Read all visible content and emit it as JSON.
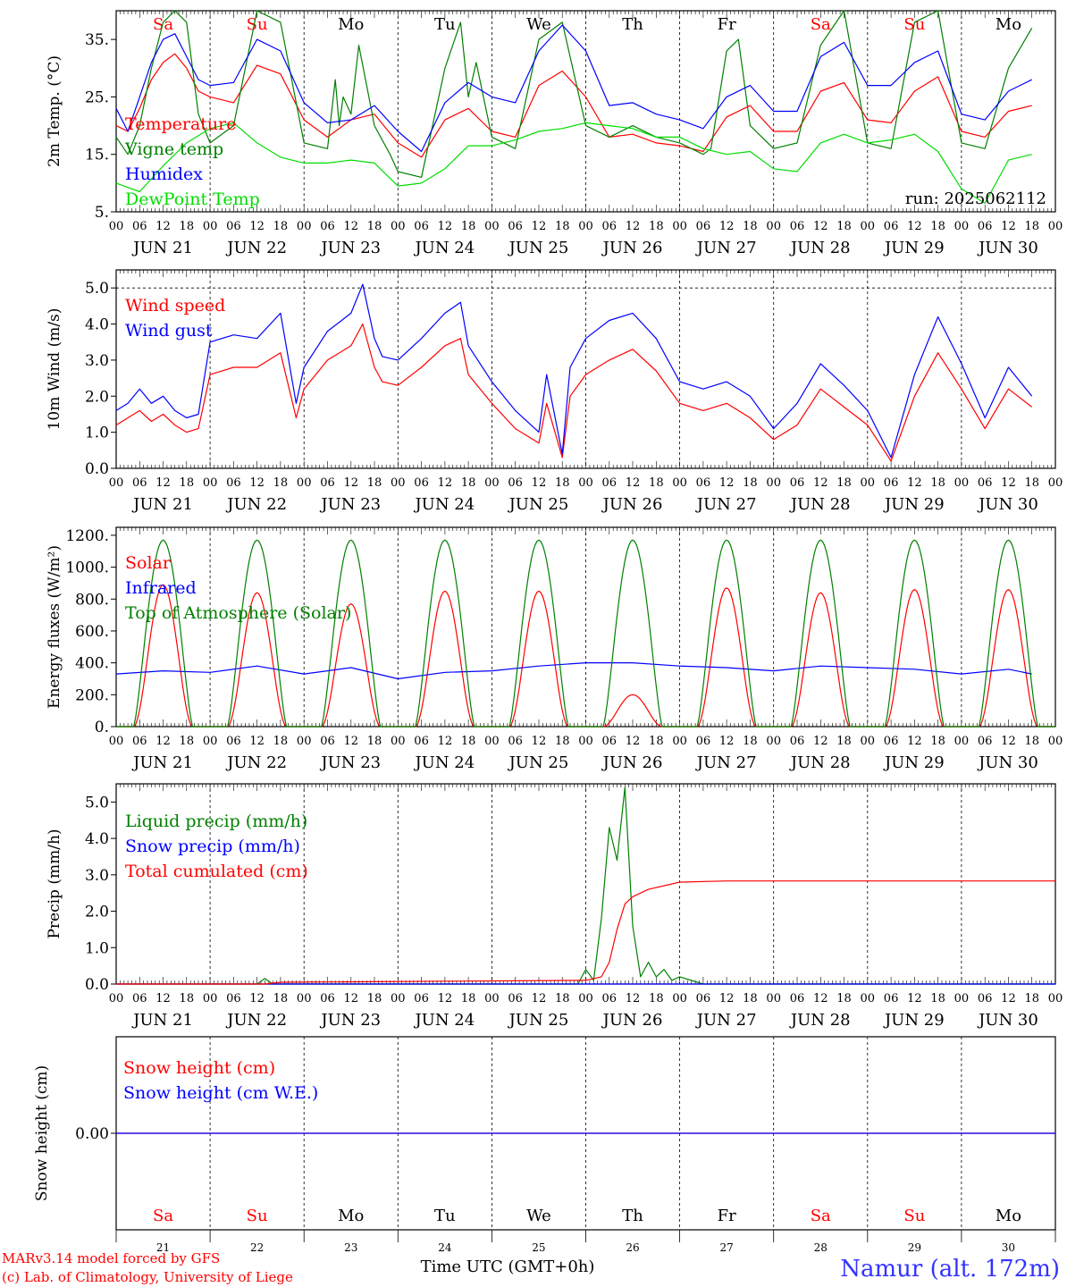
{
  "footer": {
    "model": "MARv3.14 model forced by GFS",
    "lab": "(c) Lab. of Climatology, University of Liege",
    "station": "Namur (alt. 172m)",
    "xlabel": "Time UTC (GMT+0h)"
  },
  "colors": {
    "red": "#ff0000",
    "green": "#008000",
    "blue": "#0000ff",
    "lightgreen": "#00dd00",
    "station": "#3333ff"
  },
  "days": [
    "Sa",
    "Su",
    "Mo",
    "Tu",
    "We",
    "Th",
    "Fr",
    "Sa",
    "Su",
    "Mo"
  ],
  "weekend": [
    true,
    true,
    false,
    false,
    false,
    false,
    false,
    true,
    true,
    false
  ],
  "dates": [
    "JUN 21",
    "JUN 22",
    "JUN 23",
    "JUN 24",
    "JUN 25",
    "JUN 26",
    "JUN 27",
    "JUN 28",
    "JUN 29",
    "JUN 30"
  ],
  "day_numbers": [
    "21",
    "22",
    "23",
    "24",
    "25",
    "26",
    "27",
    "28",
    "29",
    "30"
  ],
  "hour_ticks": [
    "00",
    "06",
    "12",
    "18"
  ],
  "end_tick": "00",
  "chart_data": [
    {
      "type": "line",
      "ylabel": "2m Temp. (°C)",
      "ylim": [
        5,
        40
      ],
      "yticks": [
        "5.",
        "15.",
        "25.",
        "35."
      ],
      "grid_lines": [],
      "x_unit": "hours since 21 Jun 00 UTC",
      "annotation": "run: 2025062112",
      "series": [
        {
          "name": "Temperature",
          "color": "#ff0000",
          "x": [
            0,
            3,
            6,
            9,
            12,
            15,
            18,
            21,
            24,
            30,
            36,
            42,
            48,
            54,
            60,
            66,
            72,
            78,
            84,
            90,
            96,
            102,
            108,
            114,
            120,
            126,
            132,
            138,
            144,
            150,
            156,
            162,
            168,
            174,
            180,
            186,
            192,
            198,
            204,
            210,
            216,
            222,
            228,
            234
          ],
          "y": [
            20,
            19,
            23,
            28,
            31,
            32.5,
            30,
            26,
            25,
            24,
            30.5,
            29,
            21,
            18,
            21,
            22,
            17,
            14.5,
            21,
            23,
            19,
            18,
            27,
            29.5,
            25,
            18,
            18.5,
            17,
            16.5,
            15.5,
            21.5,
            23.5,
            19,
            19,
            26,
            27.5,
            21,
            20.5,
            26,
            28.5,
            19,
            18,
            22.5,
            23.5
          ]
        },
        {
          "name": "Vigne temp",
          "color": "#008000",
          "x": [
            0,
            3,
            6,
            9,
            12,
            15,
            18,
            21,
            24,
            30,
            36,
            42,
            48,
            54,
            56,
            57,
            58,
            60,
            62,
            64,
            66,
            70,
            72,
            78,
            84,
            88,
            90,
            92,
            96,
            102,
            108,
            114,
            120,
            126,
            132,
            138,
            144,
            150,
            152,
            156,
            159,
            162,
            168,
            174,
            180,
            186,
            192,
            198,
            204,
            210,
            216,
            222,
            228,
            234
          ],
          "y": [
            18,
            15,
            20,
            30,
            38,
            40,
            38,
            22,
            17,
            20,
            40,
            38,
            17,
            16,
            28,
            20,
            25,
            22,
            34,
            27,
            20,
            15,
            12,
            11,
            30,
            38,
            25,
            31,
            18,
            16,
            35,
            38,
            20,
            18,
            20,
            18,
            17,
            15,
            16,
            33,
            35,
            20,
            16,
            17,
            34,
            40,
            17,
            16,
            38,
            40,
            17,
            16,
            30,
            37
          ]
        },
        {
          "name": "Humidex",
          "color": "#0000ff",
          "x": [
            0,
            3,
            6,
            9,
            12,
            15,
            18,
            21,
            24,
            30,
            36,
            42,
            48,
            54,
            60,
            66,
            72,
            78,
            84,
            90,
            96,
            102,
            108,
            114,
            120,
            126,
            132,
            138,
            144,
            150,
            156,
            162,
            168,
            174,
            180,
            186,
            192,
            198,
            204,
            210,
            216,
            222,
            228,
            234
          ],
          "y": [
            23,
            19,
            25,
            31,
            35,
            36,
            32,
            28,
            27,
            27.5,
            35,
            33,
            24,
            20.5,
            21,
            23.5,
            19,
            15.5,
            24,
            27.5,
            25,
            24,
            33,
            37.5,
            33,
            23.5,
            24,
            22,
            21,
            19.5,
            25,
            27,
            22.5,
            22.5,
            32,
            34.5,
            27,
            27,
            31,
            33,
            22,
            21,
            26,
            28
          ]
        },
        {
          "name": "DewPoint Temp",
          "color": "#00dd00",
          "x": [
            0,
            6,
            12,
            18,
            24,
            30,
            36,
            42,
            48,
            54,
            60,
            66,
            72,
            78,
            84,
            90,
            96,
            102,
            108,
            114,
            120,
            126,
            132,
            138,
            144,
            150,
            156,
            162,
            168,
            174,
            180,
            186,
            192,
            198,
            204,
            210,
            216,
            222,
            228,
            234
          ],
          "y": [
            10,
            8.5,
            13,
            17,
            19.5,
            20.5,
            17,
            14.5,
            13.5,
            13.5,
            14,
            13.5,
            9.5,
            10,
            12.5,
            16.5,
            16.5,
            17.5,
            19,
            19.5,
            20.5,
            20,
            19.5,
            18,
            18,
            16,
            15,
            15.5,
            12.5,
            12,
            17,
            18.5,
            17,
            17.5,
            18.5,
            15.5,
            9,
            6.5,
            14,
            15
          ]
        }
      ]
    },
    {
      "type": "line",
      "ylabel": "10m Wind (m/s)",
      "ylim": [
        0,
        5.5
      ],
      "yticks": [
        "0.0",
        "1.0",
        "2.0",
        "3.0",
        "4.0",
        "5.0"
      ],
      "grid_lines": [
        5
      ],
      "x_unit": "hours since 21 Jun 00 UTC",
      "series": [
        {
          "name": "Wind speed",
          "color": "#ff0000",
          "x": [
            0,
            3,
            6,
            9,
            12,
            15,
            18,
            21,
            24,
            30,
            36,
            42,
            46,
            48,
            54,
            60,
            63,
            66,
            68,
            72,
            78,
            84,
            88,
            90,
            96,
            102,
            108,
            110,
            114,
            116,
            120,
            126,
            132,
            138,
            144,
            150,
            156,
            162,
            168,
            174,
            180,
            186,
            192,
            198,
            204,
            210,
            216,
            222,
            228,
            234
          ],
          "y": [
            1.2,
            1.4,
            1.6,
            1.3,
            1.5,
            1.2,
            1.0,
            1.1,
            2.6,
            2.8,
            2.8,
            3.2,
            1.4,
            2.2,
            3.0,
            3.4,
            4.0,
            2.8,
            2.4,
            2.3,
            2.8,
            3.4,
            3.6,
            2.6,
            1.8,
            1.1,
            0.7,
            1.8,
            0.3,
            2.0,
            2.6,
            3.0,
            3.3,
            2.7,
            1.8,
            1.6,
            1.8,
            1.4,
            0.8,
            1.2,
            2.2,
            1.7,
            1.2,
            0.2,
            2.0,
            3.2,
            2.2,
            1.1,
            2.2,
            1.7
          ]
        },
        {
          "name": "Wind gust",
          "color": "#0000ff",
          "x": [
            0,
            3,
            6,
            9,
            12,
            15,
            18,
            21,
            24,
            30,
            36,
            42,
            46,
            48,
            54,
            60,
            63,
            66,
            68,
            72,
            78,
            84,
            88,
            90,
            96,
            102,
            108,
            110,
            114,
            116,
            120,
            126,
            132,
            138,
            144,
            150,
            156,
            162,
            168,
            174,
            180,
            186,
            192,
            198,
            204,
            210,
            216,
            222,
            228,
            234
          ],
          "y": [
            1.6,
            1.8,
            2.2,
            1.8,
            2.0,
            1.6,
            1.4,
            1.5,
            3.5,
            3.7,
            3.6,
            4.3,
            1.8,
            2.8,
            3.8,
            4.3,
            5.1,
            3.6,
            3.1,
            3.0,
            3.6,
            4.3,
            4.6,
            3.4,
            2.4,
            1.6,
            1.0,
            2.6,
            0.4,
            2.8,
            3.6,
            4.1,
            4.3,
            3.6,
            2.4,
            2.2,
            2.4,
            2.0,
            1.1,
            1.8,
            2.9,
            2.3,
            1.6,
            0.3,
            2.6,
            4.2,
            2.9,
            1.4,
            2.8,
            2.0
          ]
        }
      ]
    },
    {
      "type": "line",
      "ylabel": "Energy fluxes (W/m²)",
      "ylim": [
        0,
        1250
      ],
      "yticks": [
        "0.",
        "200.",
        "400.",
        "600.",
        "800.",
        "1000.",
        "1200."
      ],
      "grid_lines": [],
      "x_unit": "hours since 21 Jun 00 UTC",
      "solar_peaks": [
        890,
        840,
        770,
        850,
        850,
        200,
        870,
        840,
        860,
        860
      ],
      "toa_peak": 1170,
      "series": [
        {
          "name": "Solar",
          "color": "#ff0000"
        },
        {
          "name": "Infrared",
          "color": "#0000ff",
          "x": [
            0,
            12,
            24,
            36,
            48,
            60,
            72,
            84,
            96,
            108,
            120,
            132,
            144,
            156,
            168,
            180,
            192,
            204,
            216,
            228,
            234
          ],
          "y": [
            330,
            350,
            340,
            380,
            330,
            370,
            300,
            340,
            350,
            380,
            400,
            400,
            380,
            370,
            350,
            380,
            370,
            360,
            330,
            360,
            330
          ]
        },
        {
          "name": "Top of Atmosphere (Solar)",
          "color": "#008000"
        }
      ]
    },
    {
      "type": "line",
      "ylabel": "Precip (mm/h)",
      "ylim": [
        0,
        5.5
      ],
      "yticks": [
        "0.0",
        "1.0",
        "2.0",
        "3.0",
        "4.0",
        "5.0"
      ],
      "grid_lines": [],
      "x_unit": "hours since 21 Jun 00 UTC",
      "series": [
        {
          "name": "Liquid precip (mm/h)",
          "color": "#008000",
          "x": [
            0,
            36,
            38,
            40,
            42,
            118,
            120,
            122,
            124,
            126,
            128,
            130,
            132,
            134,
            136,
            138,
            140,
            142,
            144,
            150,
            240
          ],
          "y": [
            0,
            0,
            0.15,
            0,
            0,
            0,
            0.4,
            0.1,
            1.8,
            4.3,
            3.4,
            5.4,
            1.6,
            0.2,
            0.6,
            0.2,
            0.4,
            0.1,
            0.2,
            0,
            0
          ]
        },
        {
          "name": "Snow precip (mm/h)",
          "color": "#0000ff",
          "x": [
            0,
            240
          ],
          "y": [
            0,
            0
          ]
        },
        {
          "name": "Total cumulated (cm)",
          "color": "#ff0000",
          "x": [
            0,
            38,
            42,
            120,
            124,
            126,
            128,
            130,
            132,
            136,
            144,
            156,
            240
          ],
          "y": [
            0,
            0,
            0.05,
            0.1,
            0.2,
            0.6,
            1.5,
            2.2,
            2.4,
            2.6,
            2.8,
            2.83,
            2.83
          ]
        }
      ]
    },
    {
      "type": "line",
      "ylabel": "Snow height (cm)",
      "ylim": [
        -1,
        1
      ],
      "yticks": [
        "0.00"
      ],
      "grid_lines": [],
      "x_unit": "hours since 21 Jun 00 UTC",
      "series": [
        {
          "name": "Snow height (cm)",
          "color": "#ff0000",
          "x": [
            0,
            240
          ],
          "y": [
            0,
            0
          ]
        },
        {
          "name": "Snow height (cm W.E.)",
          "color": "#0000ff",
          "x": [
            0,
            240
          ],
          "y": [
            0,
            0
          ]
        }
      ]
    }
  ]
}
